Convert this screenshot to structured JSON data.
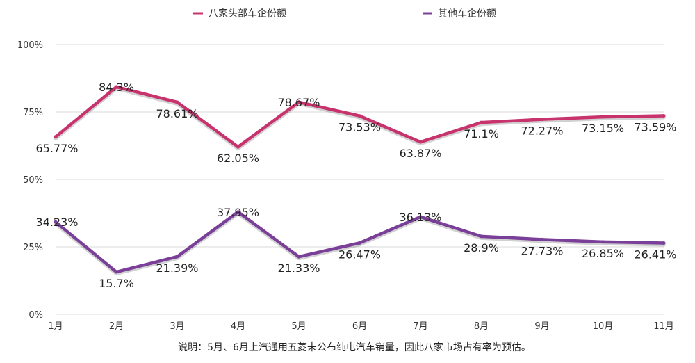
{
  "chart_data": {
    "type": "line",
    "title": "",
    "xlabel": "",
    "ylabel": "",
    "categories": [
      "1月",
      "2月",
      "3月",
      "4月",
      "5月",
      "6月",
      "7月",
      "8月",
      "9月",
      "10月",
      "11月"
    ],
    "ylim": [
      0,
      100
    ],
    "yticks": [
      "0%",
      "25%",
      "50%",
      "75%",
      "100%"
    ],
    "ytick_values": [
      0,
      25,
      50,
      75,
      100
    ],
    "grid": true,
    "legend_position": "top-center",
    "series": [
      {
        "name": "八家头部车企份额",
        "color": "#c8336e",
        "values": [
          65.77,
          84.3,
          78.61,
          62.05,
          78.67,
          73.53,
          63.87,
          71.1,
          72.27,
          73.15,
          73.59
        ],
        "labels": [
          "65.77%",
          "84.3%",
          "78.61%",
          "62.05%",
          "78.67%",
          "73.53%",
          "63.87%",
          "71.1%",
          "72.27%",
          "73.15%",
          "73.59%"
        ],
        "label_position": [
          "below",
          "on",
          "below",
          "below",
          "on",
          "below",
          "below",
          "below",
          "below",
          "below",
          "below"
        ]
      },
      {
        "name": "其他车企份额",
        "color": "#7a3f98",
        "values": [
          34.23,
          15.7,
          21.39,
          37.95,
          21.33,
          26.47,
          36.13,
          28.9,
          27.73,
          26.85,
          26.41
        ],
        "labels": [
          "34.23%",
          "15.7%",
          "21.39%",
          "37.95%",
          "21.33%",
          "26.47%",
          "36.13%",
          "28.9%",
          "27.73%",
          "26.85%",
          "26.41%"
        ],
        "label_position": [
          "on",
          "below",
          "below",
          "on",
          "below",
          "below",
          "on",
          "below",
          "below",
          "below",
          "below"
        ]
      }
    ],
    "footnote": "说明：5月、6月上汽通用五菱未公布纯电汽车销量，因此八家市场占有率为预估。"
  }
}
